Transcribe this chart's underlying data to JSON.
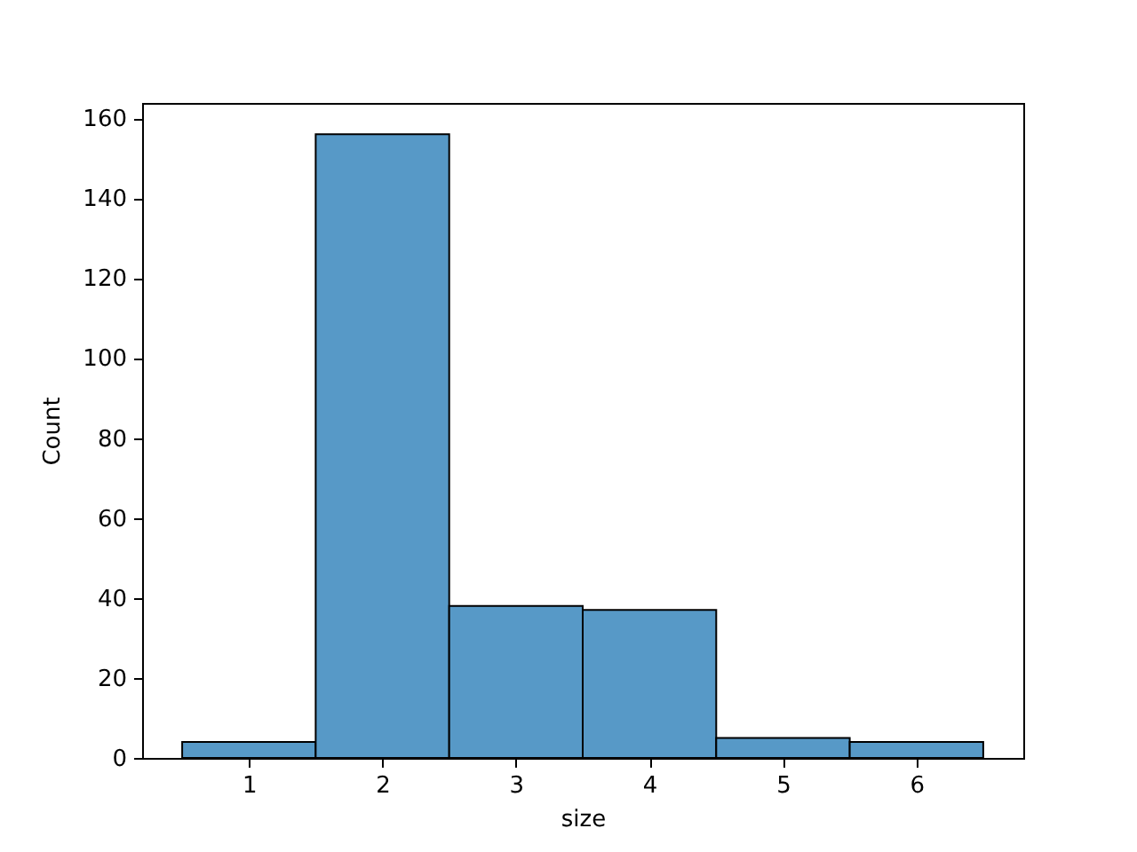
{
  "chart_data": {
    "type": "histogram",
    "xlabel": "size",
    "ylabel": "Count",
    "bins": [
      0.5,
      1.5,
      2.5,
      3.5,
      4.5,
      5.5,
      6.5
    ],
    "values": [
      4,
      156,
      38,
      37,
      5,
      4
    ],
    "color": "#5799c7",
    "xlim": [
      0.2,
      6.8
    ],
    "ylim": [
      0,
      163.8
    ],
    "xticks": [
      1,
      2,
      3,
      4,
      5,
      6
    ],
    "yticks": [
      0,
      20,
      40,
      60,
      80,
      100,
      120,
      140,
      160
    ]
  }
}
